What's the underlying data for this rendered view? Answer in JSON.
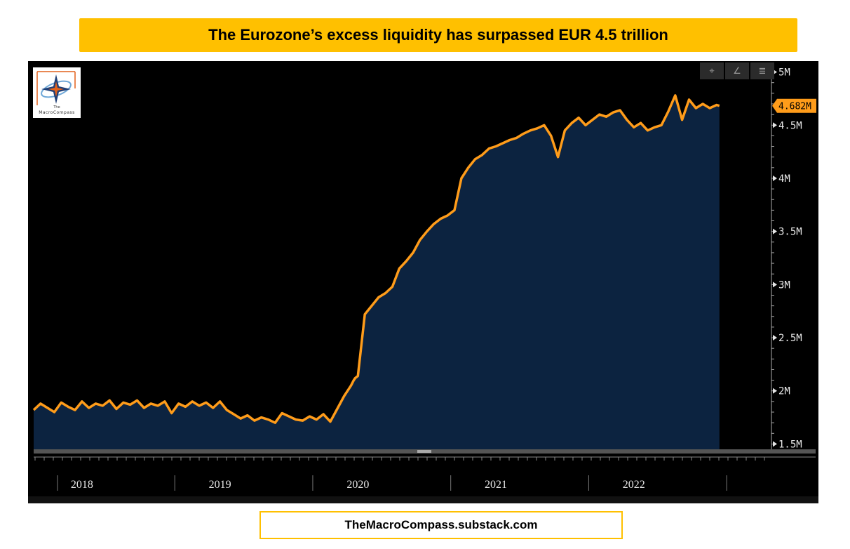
{
  "title": "The Eurozone’s excess liquidity has surpassed EUR 4.5 trillion",
  "footer": "TheMacroCompass.substack.com",
  "logo": {
    "top_text": "The",
    "name": "MacroCompass"
  },
  "toolbar": [
    {
      "name": "crosshair-icon",
      "glyph": "⌖"
    },
    {
      "name": "draw-line-icon",
      "glyph": "∠"
    },
    {
      "name": "menu-icon",
      "glyph": "≣"
    }
  ],
  "colors": {
    "line": "#ff9c1a",
    "area": "#0c2340",
    "banner": "#ffc000"
  },
  "chart_data": {
    "type": "area",
    "title": "",
    "xlabel": "",
    "ylabel": "",
    "ylim": [
      1.45,
      5.05
    ],
    "yticks": [
      {
        "v": 1.5,
        "label": "1.5M"
      },
      {
        "v": 2.0,
        "label": "2M"
      },
      {
        "v": 2.5,
        "label": "2.5M"
      },
      {
        "v": 3.0,
        "label": "3M"
      },
      {
        "v": 3.5,
        "label": "3.5M"
      },
      {
        "v": 4.0,
        "label": "4M"
      },
      {
        "v": 4.5,
        "label": "4.5M"
      },
      {
        "v": 5.0,
        "label": "5M"
      }
    ],
    "xlim": [
      2017.65,
      2022.85
    ],
    "xticks": [
      {
        "v": 2018.0,
        "label": "2018"
      },
      {
        "v": 2019.0,
        "label": "2019"
      },
      {
        "v": 2020.0,
        "label": "2020"
      },
      {
        "v": 2021.0,
        "label": "2021"
      },
      {
        "v": 2022.0,
        "label": "2022"
      }
    ],
    "last_value": {
      "x": 2022.62,
      "y": 4.682,
      "label": "4.682M"
    },
    "series": [
      {
        "x": [
          2017.65,
          2017.7,
          2017.75,
          2017.8,
          2017.85,
          2017.9,
          2017.95,
          2018.0,
          2018.05,
          2018.1,
          2018.15,
          2018.2,
          2018.25,
          2018.3,
          2018.35,
          2018.4,
          2018.45,
          2018.5,
          2018.55,
          2018.6,
          2018.65,
          2018.7,
          2018.75,
          2018.8,
          2018.85,
          2018.9,
          2018.95,
          2019.0,
          2019.05,
          2019.1,
          2019.15,
          2019.2,
          2019.25,
          2019.3,
          2019.35,
          2019.4,
          2019.45,
          2019.5,
          2019.55,
          2019.6,
          2019.65,
          2019.7,
          2019.75,
          2019.8,
          2019.85,
          2019.9,
          2019.95,
          2019.97,
          2019.98,
          2020.0,
          2020.05,
          2020.1,
          2020.15,
          2020.2,
          2020.25,
          2020.3,
          2020.35,
          2020.4,
          2020.45,
          2020.5,
          2020.55,
          2020.6,
          2020.65,
          2020.7,
          2020.75,
          2020.8,
          2020.85,
          2020.9,
          2020.95,
          2021.0,
          2021.05,
          2021.1,
          2021.15,
          2021.2,
          2021.25,
          2021.3,
          2021.35,
          2021.4,
          2021.45,
          2021.5,
          2021.55,
          2021.6,
          2021.65,
          2021.7,
          2021.75,
          2021.8,
          2021.85,
          2021.9,
          2021.95,
          2022.0,
          2022.05,
          2022.1,
          2022.15,
          2022.2,
          2022.25,
          2022.3,
          2022.35,
          2022.4,
          2022.45,
          2022.5,
          2022.55,
          2022.6,
          2022.62
        ],
        "y": [
          1.82,
          1.88,
          1.84,
          1.8,
          1.89,
          1.85,
          1.82,
          1.9,
          1.84,
          1.88,
          1.86,
          1.91,
          1.83,
          1.89,
          1.87,
          1.91,
          1.84,
          1.88,
          1.86,
          1.9,
          1.79,
          1.88,
          1.85,
          1.9,
          1.86,
          1.89,
          1.84,
          1.9,
          1.82,
          1.78,
          1.74,
          1.77,
          1.72,
          1.75,
          1.73,
          1.7,
          1.79,
          1.76,
          1.73,
          1.72,
          1.76,
          1.73,
          1.78,
          1.71,
          1.83,
          1.95,
          2.05,
          2.1,
          2.12,
          2.14,
          2.72,
          2.8,
          2.88,
          2.92,
          2.98,
          3.15,
          3.22,
          3.3,
          3.42,
          3.5,
          3.57,
          3.62,
          3.65,
          3.7,
          4.0,
          4.1,
          4.18,
          4.22,
          4.28,
          4.3,
          4.33,
          4.36,
          4.38,
          4.42,
          4.45,
          4.47,
          4.5,
          4.4,
          4.2,
          4.45,
          4.52,
          4.57,
          4.5,
          4.55,
          4.6,
          4.58,
          4.62,
          4.64,
          4.55,
          4.48,
          4.52,
          4.45,
          4.48,
          4.5,
          4.63,
          4.78,
          4.55,
          4.74,
          4.66,
          4.7,
          4.66,
          4.69,
          4.682
        ]
      }
    ]
  }
}
